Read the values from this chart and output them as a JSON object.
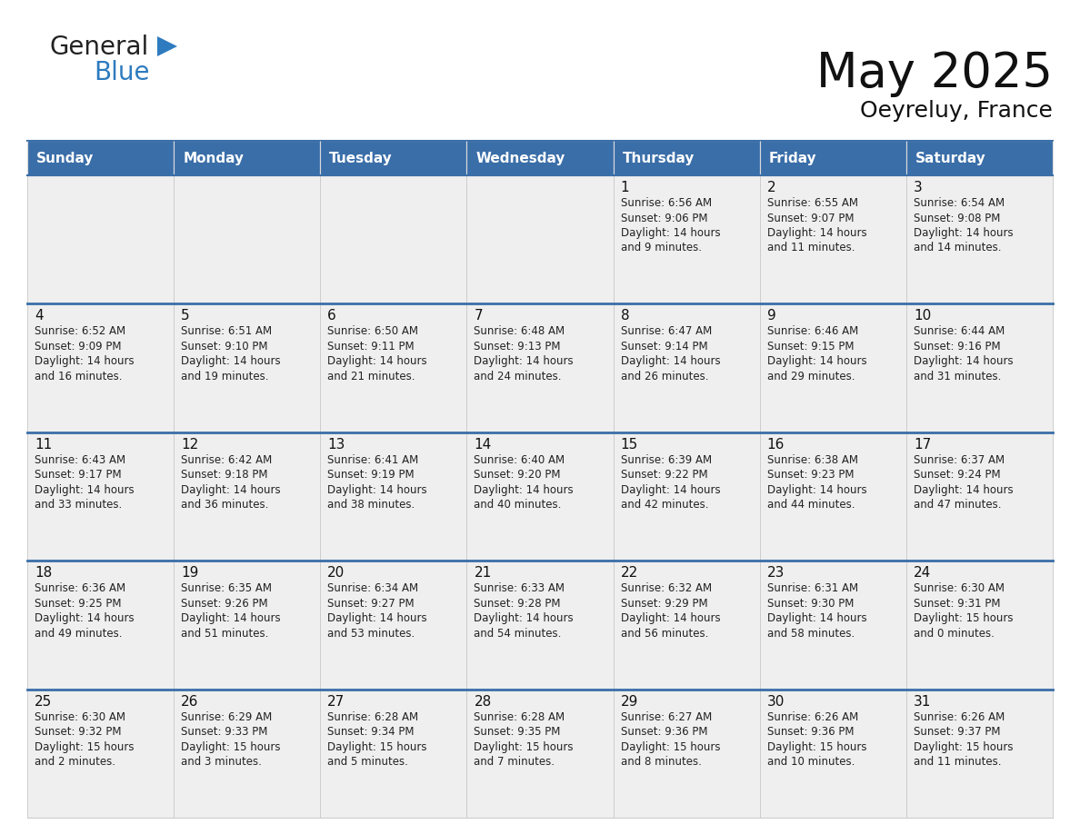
{
  "title": "May 2025",
  "subtitle": "Oeyreluy, France",
  "header_color": "#3a6ea8",
  "header_text_color": "#FFFFFF",
  "cell_bg_light": "#efefef",
  "cell_bg_white": "#ffffff",
  "week_separator_color": "#3a6ea8",
  "grid_color": "#cccccc",
  "day_names": [
    "Sunday",
    "Monday",
    "Tuesday",
    "Wednesday",
    "Thursday",
    "Friday",
    "Saturday"
  ],
  "weeks": [
    [
      {
        "day": "",
        "info": ""
      },
      {
        "day": "",
        "info": ""
      },
      {
        "day": "",
        "info": ""
      },
      {
        "day": "",
        "info": ""
      },
      {
        "day": "1",
        "info": "Sunrise: 6:56 AM\nSunset: 9:06 PM\nDaylight: 14 hours\nand 9 minutes."
      },
      {
        "day": "2",
        "info": "Sunrise: 6:55 AM\nSunset: 9:07 PM\nDaylight: 14 hours\nand 11 minutes."
      },
      {
        "day": "3",
        "info": "Sunrise: 6:54 AM\nSunset: 9:08 PM\nDaylight: 14 hours\nand 14 minutes."
      }
    ],
    [
      {
        "day": "4",
        "info": "Sunrise: 6:52 AM\nSunset: 9:09 PM\nDaylight: 14 hours\nand 16 minutes."
      },
      {
        "day": "5",
        "info": "Sunrise: 6:51 AM\nSunset: 9:10 PM\nDaylight: 14 hours\nand 19 minutes."
      },
      {
        "day": "6",
        "info": "Sunrise: 6:50 AM\nSunset: 9:11 PM\nDaylight: 14 hours\nand 21 minutes."
      },
      {
        "day": "7",
        "info": "Sunrise: 6:48 AM\nSunset: 9:13 PM\nDaylight: 14 hours\nand 24 minutes."
      },
      {
        "day": "8",
        "info": "Sunrise: 6:47 AM\nSunset: 9:14 PM\nDaylight: 14 hours\nand 26 minutes."
      },
      {
        "day": "9",
        "info": "Sunrise: 6:46 AM\nSunset: 9:15 PM\nDaylight: 14 hours\nand 29 minutes."
      },
      {
        "day": "10",
        "info": "Sunrise: 6:44 AM\nSunset: 9:16 PM\nDaylight: 14 hours\nand 31 minutes."
      }
    ],
    [
      {
        "day": "11",
        "info": "Sunrise: 6:43 AM\nSunset: 9:17 PM\nDaylight: 14 hours\nand 33 minutes."
      },
      {
        "day": "12",
        "info": "Sunrise: 6:42 AM\nSunset: 9:18 PM\nDaylight: 14 hours\nand 36 minutes."
      },
      {
        "day": "13",
        "info": "Sunrise: 6:41 AM\nSunset: 9:19 PM\nDaylight: 14 hours\nand 38 minutes."
      },
      {
        "day": "14",
        "info": "Sunrise: 6:40 AM\nSunset: 9:20 PM\nDaylight: 14 hours\nand 40 minutes."
      },
      {
        "day": "15",
        "info": "Sunrise: 6:39 AM\nSunset: 9:22 PM\nDaylight: 14 hours\nand 42 minutes."
      },
      {
        "day": "16",
        "info": "Sunrise: 6:38 AM\nSunset: 9:23 PM\nDaylight: 14 hours\nand 44 minutes."
      },
      {
        "day": "17",
        "info": "Sunrise: 6:37 AM\nSunset: 9:24 PM\nDaylight: 14 hours\nand 47 minutes."
      }
    ],
    [
      {
        "day": "18",
        "info": "Sunrise: 6:36 AM\nSunset: 9:25 PM\nDaylight: 14 hours\nand 49 minutes."
      },
      {
        "day": "19",
        "info": "Sunrise: 6:35 AM\nSunset: 9:26 PM\nDaylight: 14 hours\nand 51 minutes."
      },
      {
        "day": "20",
        "info": "Sunrise: 6:34 AM\nSunset: 9:27 PM\nDaylight: 14 hours\nand 53 minutes."
      },
      {
        "day": "21",
        "info": "Sunrise: 6:33 AM\nSunset: 9:28 PM\nDaylight: 14 hours\nand 54 minutes."
      },
      {
        "day": "22",
        "info": "Sunrise: 6:32 AM\nSunset: 9:29 PM\nDaylight: 14 hours\nand 56 minutes."
      },
      {
        "day": "23",
        "info": "Sunrise: 6:31 AM\nSunset: 9:30 PM\nDaylight: 14 hours\nand 58 minutes."
      },
      {
        "day": "24",
        "info": "Sunrise: 6:30 AM\nSunset: 9:31 PM\nDaylight: 15 hours\nand 0 minutes."
      }
    ],
    [
      {
        "day": "25",
        "info": "Sunrise: 6:30 AM\nSunset: 9:32 PM\nDaylight: 15 hours\nand 2 minutes."
      },
      {
        "day": "26",
        "info": "Sunrise: 6:29 AM\nSunset: 9:33 PM\nDaylight: 15 hours\nand 3 minutes."
      },
      {
        "day": "27",
        "info": "Sunrise: 6:28 AM\nSunset: 9:34 PM\nDaylight: 15 hours\nand 5 minutes."
      },
      {
        "day": "28",
        "info": "Sunrise: 6:28 AM\nSunset: 9:35 PM\nDaylight: 15 hours\nand 7 minutes."
      },
      {
        "day": "29",
        "info": "Sunrise: 6:27 AM\nSunset: 9:36 PM\nDaylight: 15 hours\nand 8 minutes."
      },
      {
        "day": "30",
        "info": "Sunrise: 6:26 AM\nSunset: 9:36 PM\nDaylight: 15 hours\nand 10 minutes."
      },
      {
        "day": "31",
        "info": "Sunrise: 6:26 AM\nSunset: 9:37 PM\nDaylight: 15 hours\nand 11 minutes."
      }
    ]
  ],
  "logo_general_color": "#222222",
  "logo_blue_color": "#2e7bbf",
  "logo_triangle_color": "#2e7bbf",
  "fig_width": 11.88,
  "fig_height": 9.18,
  "dpi": 100
}
